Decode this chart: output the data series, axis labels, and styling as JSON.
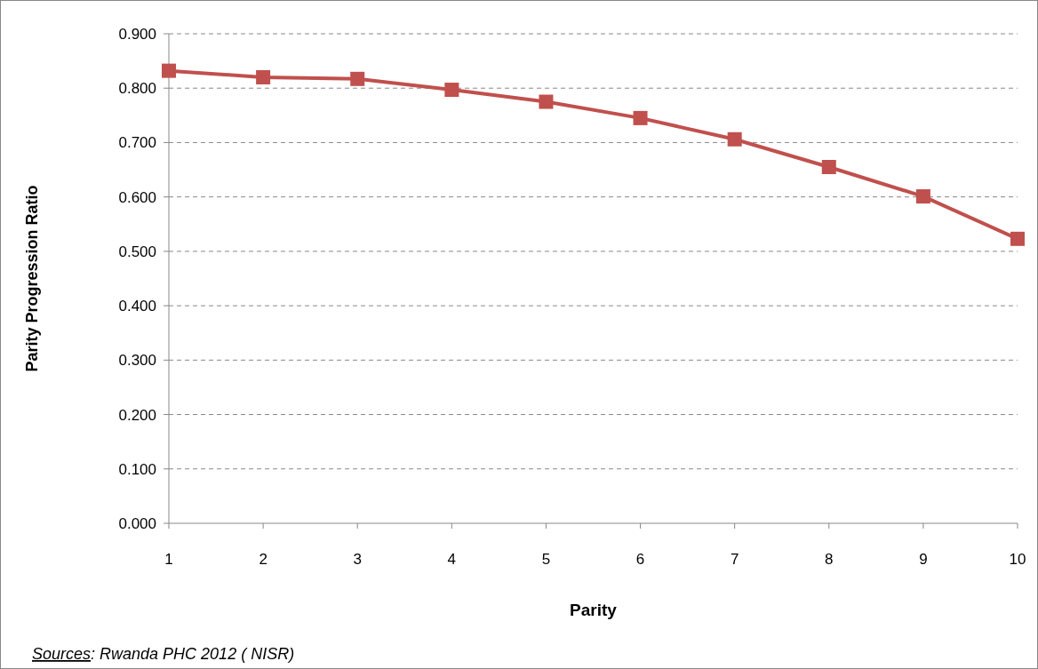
{
  "chart_data": {
    "type": "line",
    "xlabel": "Parity",
    "ylabel": "Parity Progression Ratio",
    "categories": [
      "1",
      "2",
      "3",
      "4",
      "5",
      "6",
      "7",
      "8",
      "9",
      "10"
    ],
    "series": [
      {
        "color": "#c0504d",
        "values": [
          0.832,
          0.82,
          0.817,
          0.797,
          0.775,
          0.745,
          0.706,
          0.655,
          0.601,
          0.523
        ]
      }
    ],
    "ylim": [
      0,
      0.9
    ],
    "yticks": [
      {
        "value": 0,
        "label": "0.000"
      },
      {
        "value": 0.1,
        "label": "0.100"
      },
      {
        "value": 0.2,
        "label": "0.200"
      },
      {
        "value": 0.3,
        "label": "0.300"
      },
      {
        "value": 0.4,
        "label": "0.400"
      },
      {
        "value": 0.5,
        "label": "0.500"
      },
      {
        "value": 0.6,
        "label": "0.600"
      },
      {
        "value": 0.7,
        "label": "0.700"
      },
      {
        "value": 0.8,
        "label": "0.800"
      },
      {
        "value": 0.9,
        "label": "0.900"
      }
    ],
    "grid": "y",
    "marker": "square",
    "line_style": "solid",
    "annotations": [
      "Sources: Rwanda PHC 2012 ( NISR)"
    ]
  }
}
